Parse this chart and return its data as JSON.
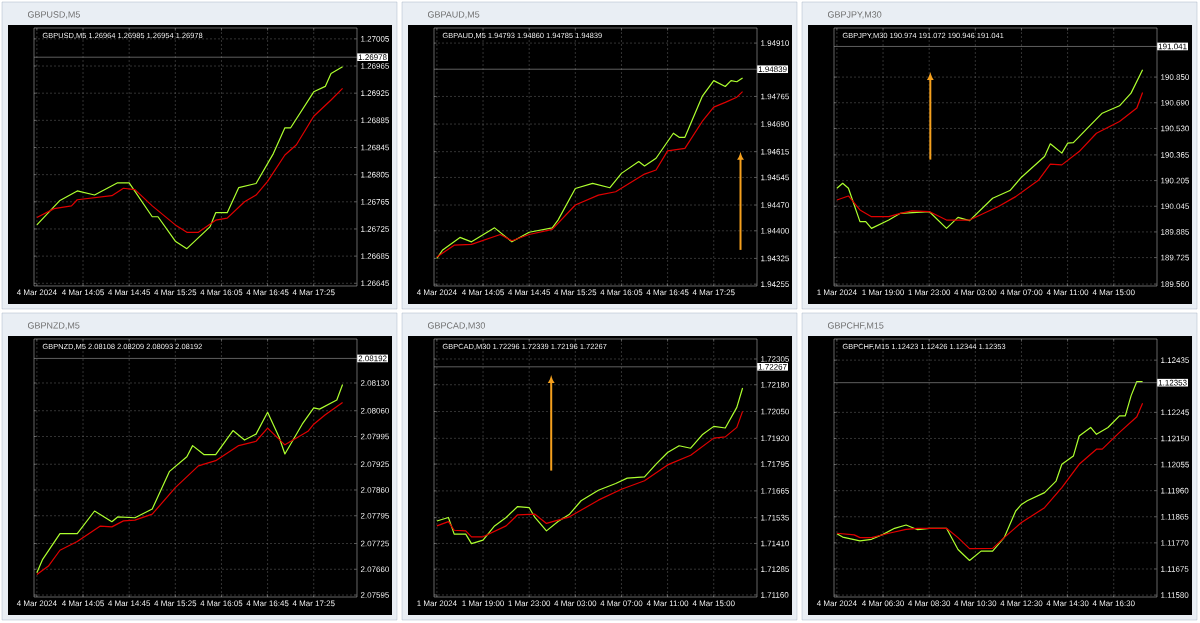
{
  "chart_data": [
    {
      "type": "line",
      "subtitle": "GBPUSD,M5",
      "title": "GBPUSD,M5 1.26964 1.26985 1.26954 1.26978",
      "grid": true,
      "ylim": [
        1.26641,
        1.27021
      ],
      "categories": [
        "4 Mar 2024",
        null,
        null,
        null,
        null,
        null,
        null,
        null,
        "4 Mar 14:05",
        null,
        null,
        null,
        null,
        null,
        null,
        null,
        "4 Mar 14:45",
        null,
        null,
        null,
        null,
        null,
        null,
        null,
        "4 Mar 15:25",
        null,
        null,
        null,
        null,
        null,
        null,
        null,
        "4 Mar 16:05",
        null,
        null,
        null,
        null,
        null,
        null,
        null,
        "4 Mar 16:45",
        null,
        null,
        null,
        null,
        null,
        null,
        null,
        "4 Mar 17:25",
        null,
        null,
        null,
        null,
        null,
        null,
        null
      ],
      "yticks": [
        1.26645,
        1.26685,
        1.26725,
        1.26765,
        1.26805,
        1.26845,
        1.26885,
        1.26925,
        1.26965,
        1.27005
      ],
      "ref_lines": [
        {
          "axis": "y",
          "value": 1.26978,
          "label": "1.26978",
          "color": "#a0a0a0"
        }
      ],
      "series": [
        {
          "color": "#adff2f",
          "values": [
            1.26731,
            null,
            null,
            null,
            1.26767,
            null,
            null,
            1.26781,
            null,
            null,
            1.26775,
            null,
            null,
            null,
            1.26793,
            null,
            1.26793,
            null,
            null,
            null,
            1.26743,
            1.26743,
            null,
            null,
            1.26707,
            null,
            1.26696,
            null,
            null,
            null,
            1.26728,
            1.26749,
            null,
            1.26749,
            null,
            1.26786,
            null,
            null,
            1.26792,
            null,
            null,
            1.26836,
            null,
            1.26874,
            1.26874,
            null,
            null,
            null,
            1.26927,
            null,
            1.26935,
            1.26954,
            null,
            1.26964,
            null,
            null
          ]
        },
        {
          "color": "#e00000",
          "values": [
            1.26742,
            null,
            null,
            1.26755,
            null,
            null,
            1.26759,
            1.26768,
            null,
            null,
            null,
            null,
            null,
            1.26774,
            null,
            1.26785,
            null,
            1.26783,
            null,
            null,
            1.26759,
            null,
            null,
            null,
            1.26731,
            null,
            1.2672,
            null,
            1.2672,
            null,
            null,
            1.26738,
            null,
            1.26741,
            null,
            null,
            1.26765,
            null,
            1.26775,
            null,
            1.26795,
            null,
            null,
            1.26834,
            null,
            1.26849,
            null,
            null,
            1.26891,
            null,
            null,
            1.26915,
            null,
            1.26932,
            null,
            null
          ]
        }
      ]
    },
    {
      "type": "line",
      "subtitle": "GBPAUD,M5",
      "title": "GBPAUD,M5 1.94793 1.94860 1.94785 1.94839",
      "grid": true,
      "ylim": [
        1.9425,
        1.94951
      ],
      "categories": [
        "4 Mar 2024",
        null,
        null,
        null,
        null,
        null,
        null,
        null,
        "4 Mar 14:05",
        null,
        null,
        null,
        null,
        null,
        null,
        null,
        "4 Mar 14:45",
        null,
        null,
        null,
        null,
        null,
        null,
        null,
        "4 Mar 15:25",
        null,
        null,
        null,
        null,
        null,
        null,
        null,
        "4 Mar 16:05",
        null,
        null,
        null,
        null,
        null,
        null,
        null,
        "4 Mar 16:45",
        null,
        null,
        null,
        null,
        null,
        null,
        null,
        "4 Mar 17:25",
        null,
        null,
        null,
        null,
        null,
        null,
        null
      ],
      "yticks": [
        1.94255,
        1.94325,
        {
          "value": 1.944,
          "label": "1.94400"
        },
        {
          "value": 1.9447,
          "label": "1.94470"
        },
        1.94545,
        1.94615,
        {
          "value": 1.9469,
          "label": "1.94690"
        },
        1.94765,
        {
          "value": 1.9491,
          "label": "1.94910"
        }
      ],
      "ref_lines": [
        {
          "axis": "y",
          "value": 1.94839,
          "label": "1.94839",
          "color": "#a0a0a0"
        }
      ],
      "series": [
        {
          "color": "#adff2f",
          "values": [
            1.94325,
            1.94348,
            null,
            null,
            1.94382,
            null,
            1.9437,
            null,
            null,
            null,
            1.94408,
            null,
            null,
            1.9437,
            null,
            null,
            1.94396,
            null,
            null,
            null,
            1.94408,
            1.94429,
            null,
            null,
            1.94515,
            null,
            null,
            1.94529,
            null,
            null,
            1.94517,
            null,
            1.94556,
            null,
            null,
            1.94588,
            1.94576,
            null,
            1.94597,
            null,
            null,
            1.94665,
            1.94654,
            1.94654,
            null,
            null,
            1.94765,
            null,
            1.94808,
            null,
            1.94792,
            1.94808,
            1.94805,
            1.94815,
            null,
            null
          ]
        },
        {
          "color": "#e00000",
          "values": [
            1.94329,
            null,
            null,
            1.94361,
            null,
            null,
            1.94363,
            null,
            null,
            null,
            null,
            1.9439,
            null,
            1.94373,
            null,
            null,
            1.9439,
            null,
            null,
            null,
            1.94404,
            null,
            null,
            null,
            1.9447,
            null,
            null,
            null,
            1.94497,
            null,
            null,
            1.94506,
            null,
            null,
            null,
            null,
            1.94554,
            null,
            1.94565,
            null,
            1.94617,
            null,
            null,
            1.94624,
            null,
            null,
            1.94697,
            null,
            1.94736,
            null,
            1.94749,
            null,
            1.94763,
            1.94778,
            null,
            null
          ]
        }
      ]
    },
    {
      "type": "line",
      "subtitle": "GBPJPY,M30",
      "title": "GBPJPY,M30 190.974 191.072 190.946 191.041",
      "grid": true,
      "ylim": [
        189.548,
        191.156
      ],
      "categories": [
        "1 Mar 2024",
        null,
        null,
        null,
        null,
        null,
        null,
        null,
        "1 Mar 19:00",
        null,
        null,
        null,
        null,
        null,
        null,
        null,
        "1 Mar 23:00",
        null,
        null,
        null,
        null,
        null,
        null,
        null,
        "4 Mar 03:00",
        null,
        null,
        null,
        null,
        null,
        null,
        null,
        "4 Mar 07:00",
        null,
        null,
        null,
        null,
        null,
        null,
        null,
        "4 Mar 11:00",
        null,
        null,
        null,
        null,
        null,
        null,
        null,
        "4 Mar 15:00",
        null,
        null,
        null,
        null,
        null,
        null,
        null
      ],
      "yticks": [
        {
          "value": 189.56,
          "label": "189.560"
        },
        189.725,
        189.885,
        190.045,
        190.205,
        190.365,
        {
          "value": 190.53,
          "label": "190.530"
        },
        {
          "value": 190.69,
          "label": "190.690"
        },
        {
          "value": 190.85,
          "label": "190.850"
        }
      ],
      "ref_lines": [
        {
          "axis": "y",
          "value": 191.041,
          "label": "191.041",
          "color": "#a0a0a0"
        }
      ],
      "series": [
        {
          "color": "#adff2f",
          "values": [
            190.157,
            190.188,
            190.157,
            null,
            189.949,
            189.949,
            189.907,
            null,
            null,
            189.959,
            null,
            190.001,
            null,
            null,
            null,
            null,
            190.012,
            null,
            null,
            189.907,
            null,
            189.976,
            null,
            189.955,
            null,
            null,
            null,
            190.095,
            null,
            null,
            190.143,
            null,
            190.226,
            null,
            null,
            null,
            190.355,
            190.434,
            null,
            190.376,
            190.438,
            190.442,
            null,
            null,
            190.552,
            null,
            190.625,
            null,
            null,
            190.671,
            null,
            190.75,
            null,
            190.896,
            null,
            null
          ]
        },
        {
          "color": "#e00000",
          "values": [
            190.084,
            null,
            190.109,
            null,
            190.022,
            null,
            189.98,
            null,
            null,
            189.98,
            null,
            190.001,
            null,
            190.016,
            null,
            null,
            190.012,
            null,
            null,
            189.959,
            null,
            null,
            null,
            189.959,
            null,
            null,
            null,
            null,
            190.043,
            null,
            null,
            190.105,
            null,
            null,
            null,
            190.209,
            null,
            190.307,
            null,
            190.303,
            null,
            null,
            190.386,
            null,
            null,
            190.5,
            null,
            null,
            null,
            190.573,
            null,
            null,
            190.657,
            190.754,
            null,
            null
          ]
        }
      ]
    },
    {
      "type": "line",
      "subtitle": "GBPNZD,M5",
      "title": "GBPNZD,M5 2.08108 2.08209 2.08093 2.08192",
      "grid": true,
      "ylim": [
        2.0759,
        2.08241
      ],
      "categories": [
        "4 Mar 2024",
        null,
        null,
        null,
        null,
        null,
        null,
        null,
        "4 Mar 14:05",
        null,
        null,
        null,
        null,
        null,
        null,
        null,
        "4 Mar 14:45",
        null,
        null,
        null,
        null,
        null,
        null,
        null,
        "4 Mar 15:25",
        null,
        null,
        null,
        null,
        null,
        null,
        null,
        "4 Mar 16:05",
        null,
        null,
        null,
        null,
        null,
        null,
        null,
        "4 Mar 16:45",
        null,
        null,
        null,
        null,
        null,
        null,
        null,
        "4 Mar 17:25",
        null,
        null,
        null,
        null,
        null,
        null,
        null
      ],
      "yticks": [
        2.07595,
        {
          "value": 2.0766,
          "label": "2.07660"
        },
        2.07725,
        2.07795,
        {
          "value": 2.0786,
          "label": "2.07860"
        },
        2.07925,
        2.07995,
        {
          "value": 2.0806,
          "label": "2.08060"
        },
        {
          "value": 2.0813,
          "label": "2.08130"
        }
      ],
      "ref_lines": [
        {
          "axis": "y",
          "value": 2.08192,
          "label": "2.08192",
          "color": "#a0a0a0"
        }
      ],
      "series": [
        {
          "color": "#adff2f",
          "values": [
            2.07651,
            2.07685,
            null,
            null,
            2.0775,
            null,
            null,
            2.0775,
            null,
            null,
            2.07807,
            null,
            null,
            2.0778,
            2.07792,
            null,
            null,
            2.0779,
            null,
            null,
            2.07812,
            null,
            null,
            2.07907,
            null,
            null,
            2.07944,
            2.07972,
            null,
            2.07949,
            null,
            2.07949,
            null,
            null,
            2.0801,
            null,
            2.07986,
            null,
            2.08001,
            null,
            2.08056,
            null,
            2.07993,
            2.07951,
            null,
            null,
            2.08026,
            null,
            2.08067,
            2.08064,
            null,
            null,
            2.08087,
            2.08126,
            null,
            null
          ]
        },
        {
          "color": "#e00000",
          "values": [
            2.07647,
            null,
            2.07668,
            null,
            2.07708,
            null,
            null,
            2.0773,
            null,
            null,
            null,
            2.07769,
            null,
            2.07767,
            null,
            2.07782,
            null,
            2.07784,
            null,
            null,
            2.07799,
            null,
            null,
            null,
            2.07866,
            null,
            null,
            null,
            2.07921,
            null,
            null,
            2.07934,
            null,
            null,
            null,
            2.07972,
            null,
            null,
            2.07983,
            null,
            2.08016,
            null,
            null,
            2.07974,
            null,
            null,
            null,
            2.08008,
            2.08026,
            null,
            2.0805,
            null,
            null,
            2.08081,
            null,
            null
          ]
        }
      ]
    },
    {
      "type": "line",
      "subtitle": "GBPCAD,M30",
      "title": "GBPCAD,M30 1.72296 1.72339 1.72196 1.72267",
      "grid": true,
      "ylim": [
        1.7115,
        1.72402
      ],
      "categories": [
        "1 Mar 2024",
        null,
        null,
        null,
        null,
        null,
        null,
        null,
        "1 Mar 19:00",
        null,
        null,
        null,
        null,
        null,
        null,
        null,
        "1 Mar 23:00",
        null,
        null,
        null,
        null,
        null,
        null,
        null,
        "4 Mar 03:00",
        null,
        null,
        null,
        null,
        null,
        null,
        null,
        "4 Mar 07:00",
        null,
        null,
        null,
        null,
        null,
        null,
        null,
        "4 Mar 11:00",
        null,
        null,
        null,
        null,
        null,
        null,
        null,
        "4 Mar 15:00",
        null,
        null,
        null,
        null,
        null,
        null,
        null
      ],
      "yticks": [
        {
          "value": 1.7116,
          "label": "1.71160"
        },
        1.71285,
        {
          "value": 1.7141,
          "label": "1.71410"
        },
        1.71535,
        1.71665,
        1.71795,
        {
          "value": 1.7192,
          "label": "1.71920"
        },
        {
          "value": 1.7205,
          "label": "1.72050"
        },
        {
          "value": 1.7218,
          "label": "1.72180"
        },
        1.72305
      ],
      "ref_lines": [
        {
          "axis": "y",
          "value": 1.72267,
          "label": "1.72267",
          "color": "#a0a0a0"
        }
      ],
      "series": [
        {
          "color": "#adff2f",
          "values": [
            1.71519,
            null,
            1.71536,
            1.71455,
            null,
            1.71455,
            1.71409,
            null,
            1.71426,
            null,
            1.71495,
            null,
            1.71536,
            null,
            1.71589,
            null,
            1.71584,
            1.71536,
            null,
            1.71471,
            null,
            1.71516,
            null,
            1.71552,
            null,
            1.71617,
            null,
            null,
            1.71668,
            null,
            null,
            1.71701,
            null,
            1.71727,
            null,
            null,
            1.71733,
            null,
            1.71795,
            null,
            1.71851,
            null,
            1.71884,
            null,
            1.71872,
            null,
            1.71937,
            null,
            1.71978,
            null,
            1.7197,
            null,
            1.7207,
            1.72164,
            null,
            null
          ]
        },
        {
          "color": "#e00000",
          "values": [
            1.71495,
            null,
            1.71516,
            1.71474,
            null,
            1.71471,
            1.71442,
            null,
            1.71442,
            null,
            null,
            null,
            1.71495,
            null,
            1.71549,
            null,
            null,
            1.71552,
            null,
            1.71507,
            null,
            null,
            null,
            1.71539,
            null,
            null,
            null,
            null,
            1.7162,
            null,
            null,
            null,
            1.71673,
            null,
            null,
            null,
            1.71714,
            null,
            null,
            null,
            1.71791,
            null,
            null,
            null,
            1.71838,
            null,
            null,
            null,
            1.71921,
            null,
            1.71927,
            null,
            1.71973,
            1.72051,
            null,
            null
          ]
        }
      ]
    },
    {
      "type": "line",
      "subtitle": "GBPCHF,M15",
      "title": "GBPCHF,M15 1.12423 1.12426 1.12344 1.12353",
      "grid": true,
      "ylim": [
        1.11573,
        1.12512
      ],
      "categories": [
        "4 Mar 2024",
        null,
        null,
        null,
        null,
        null,
        null,
        null,
        "4 Mar 06:30",
        null,
        null,
        null,
        null,
        null,
        null,
        null,
        "4 Mar 08:30",
        null,
        null,
        null,
        null,
        null,
        null,
        null,
        "4 Mar 10:30",
        null,
        null,
        null,
        null,
        null,
        null,
        null,
        "4 Mar 12:30",
        null,
        null,
        null,
        null,
        null,
        null,
        null,
        "4 Mar 14:30",
        null,
        null,
        null,
        null,
        null,
        null,
        null,
        "4 Mar 16:30",
        null,
        null,
        null,
        null,
        null,
        null,
        null
      ],
      "yticks": [
        {
          "value": 1.1158,
          "label": "1.11580"
        },
        1.11675,
        {
          "value": 1.1177,
          "label": "1.11770"
        },
        1.11865,
        {
          "value": 1.1196,
          "label": "1.11960"
        },
        1.12055,
        {
          "value": 1.1215,
          "label": "1.12150"
        },
        1.12245,
        1.12435
      ],
      "ref_lines": [
        {
          "axis": "y",
          "value": 1.12353,
          "label": "1.12353",
          "color": "#a0a0a0"
        }
      ],
      "series": [
        {
          "color": "#adff2f",
          "values": [
            1.11803,
            1.11791,
            null,
            null,
            1.11777,
            null,
            1.11783,
            null,
            1.11801,
            null,
            1.11823,
            null,
            1.11835,
            null,
            1.11818,
            null,
            1.11823,
            null,
            null,
            1.11823,
            null,
            1.11746,
            null,
            1.11706,
            null,
            1.1174,
            null,
            1.1174,
            null,
            1.11789,
            null,
            1.11886,
            1.1191,
            1.11923,
            null,
            null,
            1.11953,
            null,
            1.11995,
            1.12056,
            null,
            1.12086,
            1.12159,
            null,
            1.1219,
            1.12165,
            null,
            1.1219,
            null,
            1.12232,
            1.12232,
            1.12305,
            1.12357,
            1.12357,
            null,
            null
          ]
        },
        {
          "color": "#e00000",
          "values": [
            1.11805,
            null,
            null,
            1.11799,
            1.11789,
            null,
            1.11789,
            null,
            null,
            1.11805,
            null,
            null,
            1.11819,
            null,
            1.11823,
            null,
            null,
            null,
            null,
            1.11823,
            null,
            1.11789,
            null,
            1.11749,
            null,
            null,
            null,
            1.1175,
            null,
            1.11789,
            null,
            null,
            1.11844,
            null,
            null,
            null,
            1.11898,
            null,
            null,
            1.11971,
            null,
            null,
            1.12056,
            null,
            null,
            1.12111,
            1.12111,
            null,
            null,
            1.12172,
            null,
            null,
            1.12229,
            1.12278,
            null,
            null
          ]
        }
      ]
    }
  ]
}
